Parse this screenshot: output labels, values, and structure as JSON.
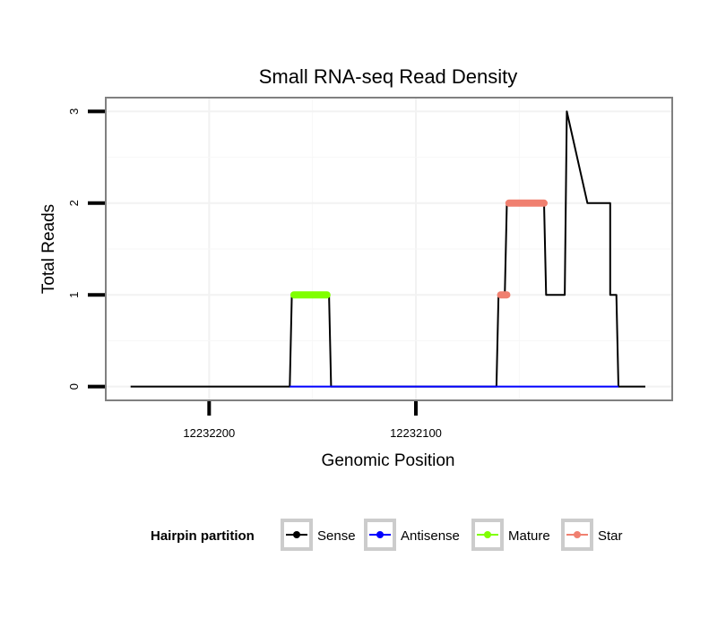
{
  "chart_data": {
    "type": "line",
    "title": "Small RNA-seq Read Density",
    "xlabel": "Genomic Position",
    "ylabel": "Total Reads",
    "xlim": [
      12232250,
      12231976
    ],
    "ylim": [
      -0.15,
      3.15
    ],
    "x_reversed": true,
    "x_ticks": [
      12232200,
      12232100
    ],
    "x_tick_labels": [
      "12232200",
      "12232100"
    ],
    "y_ticks": [
      0,
      1,
      2,
      3
    ],
    "y_tick_labels": [
      "0",
      "1",
      "2",
      "3"
    ],
    "grid": true,
    "legend": {
      "title": "Hairpin partition",
      "position": "bottom",
      "entries": [
        "Sense",
        "Antisense",
        "Mature",
        "Star"
      ]
    },
    "series": [
      {
        "name": "Sense",
        "color": "#000000",
        "style": "line",
        "x": [
          12232238,
          12232161,
          12232160,
          12232142,
          12232141,
          12232061,
          12232060,
          12232057,
          12232056,
          12232038,
          12232037,
          12232028,
          12232027,
          12232017,
          12232016,
          12232006,
          12232006,
          12232003,
          12232002,
          12231989
        ],
        "y": [
          0,
          0,
          1,
          1,
          0,
          0,
          1,
          1,
          2,
          2,
          1,
          1,
          3,
          2,
          2,
          2,
          1,
          1,
          0,
          0
        ]
      },
      {
        "name": "Antisense",
        "color": "#0000ff",
        "style": "line",
        "x": [
          12232161,
          12232141,
          12232061,
          12232002
        ],
        "y": [
          0,
          0,
          0,
          0
        ]
      },
      {
        "name": "Mature",
        "color": "#80ff00",
        "style": "thick",
        "x": [
          12232159,
          12232143
        ],
        "y": [
          1,
          1
        ]
      },
      {
        "name": "Star",
        "color": "#f08070",
        "style": "thick",
        "segments": [
          {
            "x": [
              12232059,
              12232056
            ],
            "y": [
              1,
              1
            ]
          },
          {
            "x": [
              12232055,
              12232038
            ],
            "y": [
              2,
              2
            ]
          }
        ]
      }
    ]
  }
}
